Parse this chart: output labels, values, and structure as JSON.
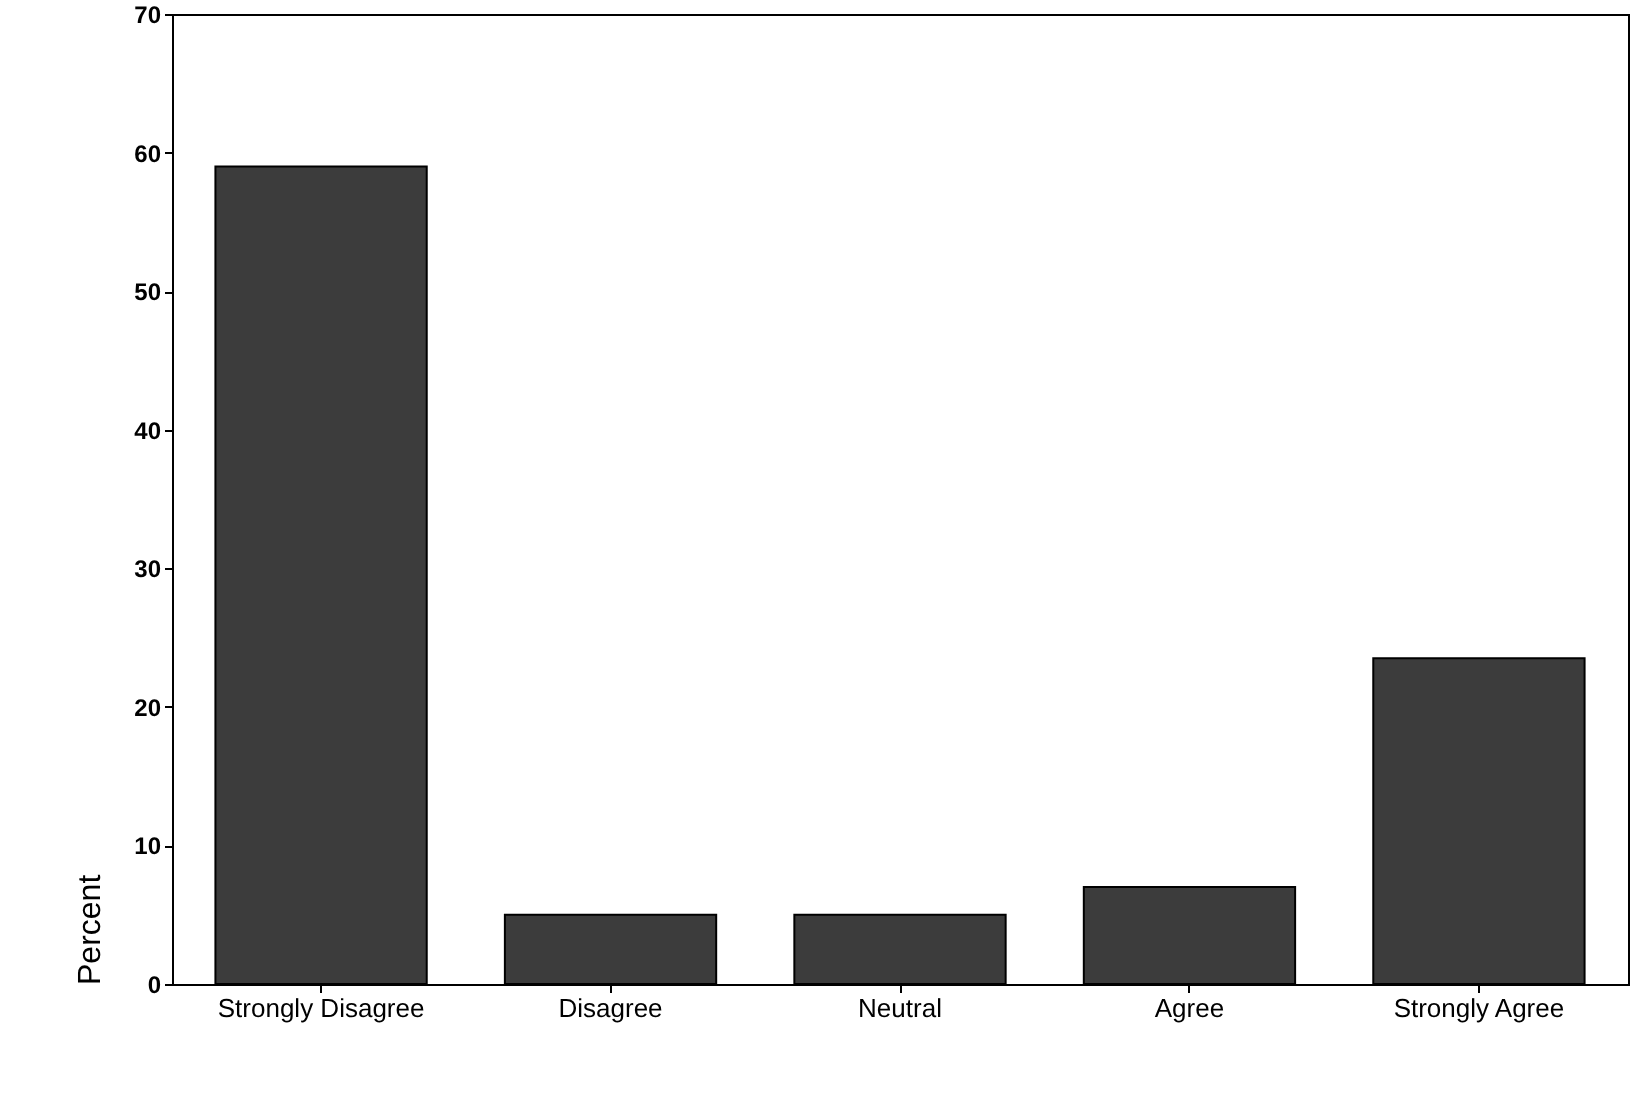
{
  "chart_data": {
    "type": "bar",
    "ylabel": "Percent",
    "categories": [
      "Strongly Disagree",
      "Disagree",
      "Neutral",
      "Agree",
      "Strongly Agree"
    ],
    "values": [
      59.0,
      5.0,
      5.0,
      7.0,
      23.5
    ],
    "color": "#3c3c3c",
    "ylim": [
      0,
      70
    ],
    "yticks": [
      0,
      10,
      20,
      30,
      40,
      50,
      60,
      70
    ],
    "grid": false
  }
}
